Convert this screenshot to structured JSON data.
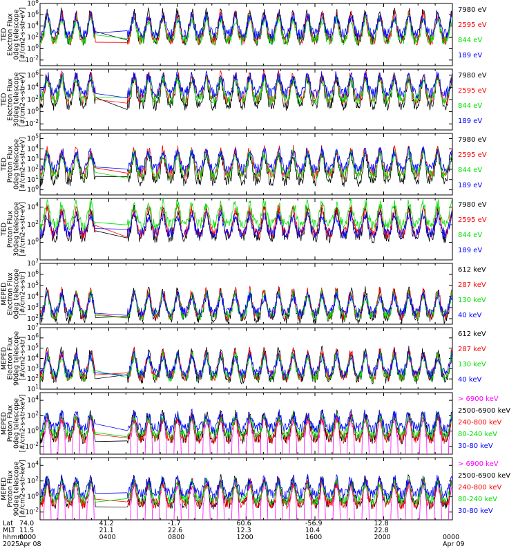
{
  "colors": {
    "black": "#000000",
    "red": "#ff0000",
    "green": "#00e000",
    "blue": "#0000ff",
    "magenta": "#ff00ff"
  },
  "chart_data": [
    {
      "type": "line",
      "title": "",
      "ylabel": [
        "TED",
        "Electron Flux",
        "0deg telescope",
        "[#/cm2-s-str-eV]"
      ],
      "yticks": [
        "10^8",
        "10^6",
        "10^4",
        "10^2",
        "10^0",
        "10^-2"
      ],
      "ylim_log": [
        -3,
        8
      ],
      "series": [
        {
          "name": "7980 eV",
          "color": "black",
          "level": 1.5
        },
        {
          "name": "2595 eV",
          "color": "red",
          "level": 1.5
        },
        {
          "name": "844 eV",
          "color": "green",
          "level": 1.5
        },
        {
          "name": "189 eV",
          "color": "blue",
          "level": 2.5
        }
      ]
    },
    {
      "type": "line",
      "title": "",
      "ylabel": [
        "TED",
        "Electron Flux",
        "30deg telescope",
        "[#/cm2-s-str-eV]"
      ],
      "yticks": [
        "10^6",
        "10^4",
        "10^2",
        "10^0",
        "10^-2"
      ],
      "ylim_log": [
        -3,
        7
      ],
      "series": [
        {
          "name": "7980 eV",
          "color": "black",
          "level": 1.0
        },
        {
          "name": "2595 eV",
          "color": "red",
          "level": 2.0
        },
        {
          "name": "844 eV",
          "color": "green",
          "level": 2.0
        },
        {
          "name": "189 eV",
          "color": "blue",
          "level": 3.0
        }
      ]
    },
    {
      "type": "line",
      "title": "",
      "ylabel": [
        "TED",
        "Proton Flux",
        "0deg telescope",
        "[#/cm2-s-str-eV]"
      ],
      "yticks": [
        "10^5",
        "10^4",
        "10^3",
        "10^2",
        "10^1",
        "10^0"
      ],
      "ylim_log": [
        -0.5,
        5.5
      ],
      "series": [
        {
          "name": "7980 eV",
          "color": "black",
          "level": 0.8
        },
        {
          "name": "2595 eV",
          "color": "red",
          "level": 1.5
        },
        {
          "name": "844 eV",
          "color": "green",
          "level": 1.5
        },
        {
          "name": "189 eV",
          "color": "blue",
          "level": 2.0
        }
      ]
    },
    {
      "type": "line",
      "title": "",
      "ylabel": [
        "TED",
        "Proton Flux",
        "30deg telescope",
        "[#/cm2-s-str-eV]"
      ],
      "yticks": [
        "10^4",
        "10^2",
        "10^0"
      ],
      "ylim_log": [
        -2,
        5
      ],
      "series": [
        {
          "name": "7980 eV",
          "color": "black",
          "level": 0.5
        },
        {
          "name": "2595 eV",
          "color": "red",
          "level": 1.0
        },
        {
          "name": "844 eV",
          "color": "green",
          "level": 2.0
        },
        {
          "name": "189 eV",
          "color": "blue",
          "level": 1.0
        }
      ]
    },
    {
      "type": "line",
      "title": "",
      "ylabel": [
        "MEPED",
        "Electron Flux",
        "0deg telescope",
        "[#/cm2-s-str]"
      ],
      "yticks": [
        "10^7",
        "10^6",
        "10^5",
        "10^4",
        "10^3",
        "10^2"
      ],
      "ylim_log": [
        1.5,
        7
      ],
      "series": [
        {
          "name": "612 keV",
          "color": "black",
          "level": 2.0
        },
        {
          "name": "287 keV",
          "color": "red",
          "level": 2.3
        },
        {
          "name": "130 keV",
          "color": "green",
          "level": 2.3
        },
        {
          "name": "40 keV",
          "color": "blue",
          "level": 2.5
        }
      ]
    },
    {
      "type": "line",
      "title": "",
      "ylabel": [
        "MEPED",
        "Electron Flux",
        "90deg telescope",
        "[#/cm2-s-str]"
      ],
      "yticks": [
        "10^7",
        "10^6",
        "10^5",
        "10^4",
        "10^3",
        "10^2",
        "10^1"
      ],
      "ylim_log": [
        1,
        7
      ],
      "series": [
        {
          "name": "612 keV",
          "color": "black",
          "level": 2.0
        },
        {
          "name": "287 keV",
          "color": "red",
          "level": 2.2
        },
        {
          "name": "130 keV",
          "color": "green",
          "level": 2.2
        },
        {
          "name": "40 keV",
          "color": "blue",
          "level": 2.5
        }
      ]
    },
    {
      "type": "line",
      "title": "",
      "ylabel": [
        "MEPED",
        "Proton Flux",
        "0deg telescope",
        "[#/cm2-s-str-keV]"
      ],
      "yticks": [
        "10^4",
        "10^2",
        "10^0",
        "10^-2"
      ],
      "ylim_log": [
        -3,
        5
      ],
      "series": [
        {
          "name": "> 6900 keV",
          "color": "magenta",
          "level": -2.0
        },
        {
          "name": "2500-6900 keV",
          "color": "black",
          "level": -1.0
        },
        {
          "name": "240-800 keV",
          "color": "red",
          "level": -1.0
        },
        {
          "name": "80-240 keV",
          "color": "green",
          "level": -0.5
        },
        {
          "name": "30-80 keV",
          "color": "blue",
          "level": 0.3
        }
      ]
    },
    {
      "type": "line",
      "title": "",
      "ylabel": [
        "MEPED",
        "Proton Flux",
        "90deg telescope",
        "[#/cm2-s-str-keV]"
      ],
      "yticks": [
        "10^4",
        "10^2",
        "10^0",
        "10^-2"
      ],
      "ylim_log": [
        -3,
        5
      ],
      "series": [
        {
          "name": "> 6900 keV",
          "color": "magenta",
          "level": -2.0
        },
        {
          "name": "2500-6900 keV",
          "color": "black",
          "level": -1.0
        },
        {
          "name": "240-800 keV",
          "color": "red",
          "level": -1.0
        },
        {
          "name": "80-240 keV",
          "color": "green",
          "level": -0.5
        },
        {
          "name": "30-80 keV",
          "color": "blue",
          "level": 0.3
        }
      ]
    }
  ],
  "xaxis": {
    "row_labels": [
      "Lat",
      "MLT",
      "hhmm",
      "2025"
    ],
    "ticks": [
      {
        "lat": "74.0",
        "mlt": "11.5",
        "hhmm": "0000",
        "date": "Apr 08"
      },
      {
        "lat": "41.2",
        "mlt": "21.1",
        "hhmm": "0400",
        "date": ""
      },
      {
        "lat": "-1.7",
        "mlt": "22.6",
        "hhmm": "0800",
        "date": ""
      },
      {
        "lat": "60.6",
        "mlt": "12.3",
        "hhmm": "1200",
        "date": ""
      },
      {
        "lat": "-56.9",
        "mlt": "10.4",
        "hhmm": "1600",
        "date": ""
      },
      {
        "lat": "12.8",
        "mlt": "22.8",
        "hhmm": "2000",
        "date": ""
      },
      {
        "lat": "",
        "mlt": "",
        "hhmm": "0000",
        "date": "Apr 09"
      }
    ],
    "gap_hours": [
      3.25,
      5.05
    ]
  }
}
